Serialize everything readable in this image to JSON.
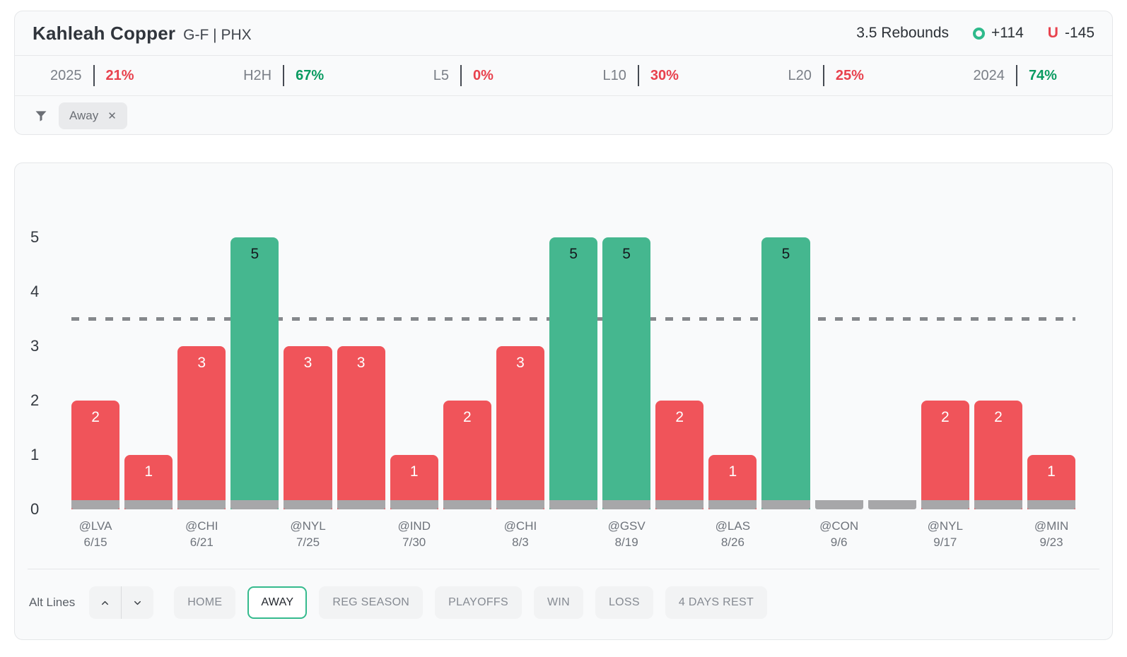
{
  "player": {
    "name": "Kahleah Copper",
    "meta": "G-F | PHX"
  },
  "prop": {
    "line_label": "3.5 Rebounds",
    "over_label": "O",
    "over_odds": "+114",
    "under_label": "U",
    "under_odds": "-145",
    "over_color": "#2eba8b",
    "under_color": "#e8434e"
  },
  "splits": [
    {
      "label": "2025",
      "value": "21%",
      "trend": "under"
    },
    {
      "label": "H2H",
      "value": "67%",
      "trend": "over"
    },
    {
      "label": "L5",
      "value": "0%",
      "trend": "under"
    },
    {
      "label": "L10",
      "value": "30%",
      "trend": "under"
    },
    {
      "label": "L20",
      "value": "25%",
      "trend": "under"
    },
    {
      "label": "2024",
      "value": "74%",
      "trend": "over"
    }
  ],
  "filters": {
    "chips": [
      {
        "label": "Away"
      }
    ]
  },
  "icons": {
    "chip_close": "✕"
  },
  "chart_data": {
    "type": "bar",
    "reference_line": 3.5,
    "y_ticks": [
      0,
      1,
      2,
      3,
      4,
      5
    ],
    "ylim": [
      0,
      5.85
    ],
    "grid": false,
    "categories": [
      "@LVA 6/15",
      "",
      "@CHI 6/21",
      "",
      "@NYL 7/25",
      "",
      "@IND 7/30",
      "",
      "@CHI 8/3",
      "",
      "@GSV 8/19",
      "",
      "@LAS 8/26",
      "",
      "@CON 9/6",
      "",
      "@NYL 9/17",
      "",
      "@MIN 9/23"
    ],
    "values": [
      2,
      1,
      3,
      5,
      3,
      3,
      1,
      2,
      3,
      5,
      5,
      2,
      1,
      5,
      0,
      0,
      2,
      2,
      1
    ],
    "games": [
      {
        "team": "@LVA",
        "date": "6/15",
        "value": 2
      },
      {
        "team": "",
        "date": "",
        "value": 1
      },
      {
        "team": "@CHI",
        "date": "6/21",
        "value": 3
      },
      {
        "team": "",
        "date": "",
        "value": 5
      },
      {
        "team": "@NYL",
        "date": "7/25",
        "value": 3
      },
      {
        "team": "",
        "date": "",
        "value": 3
      },
      {
        "team": "@IND",
        "date": "7/30",
        "value": 1
      },
      {
        "team": "",
        "date": "",
        "value": 2
      },
      {
        "team": "@CHI",
        "date": "8/3",
        "value": 3
      },
      {
        "team": "",
        "date": "",
        "value": 5
      },
      {
        "team": "@GSV",
        "date": "8/19",
        "value": 5
      },
      {
        "team": "",
        "date": "",
        "value": 2
      },
      {
        "team": "@LAS",
        "date": "8/26",
        "value": 1
      },
      {
        "team": "",
        "date": "",
        "value": 5
      },
      {
        "team": "@CON",
        "date": "9/6",
        "value": 0
      },
      {
        "team": "",
        "date": "",
        "value": 0
      },
      {
        "team": "@NYL",
        "date": "9/17",
        "value": 2
      },
      {
        "team": "",
        "date": "",
        "value": 2
      },
      {
        "team": "@MIN",
        "date": "9/23",
        "value": 1
      }
    ],
    "colors": {
      "over": "#45b78f",
      "under": "#f0545a",
      "zero_base": "#a7a7a9",
      "ref_line": "#85888c"
    },
    "legend": null,
    "title": ""
  },
  "toolbar": {
    "alt_lines_label": "Alt Lines",
    "buttons": [
      {
        "label": "HOME",
        "selected": false
      },
      {
        "label": "AWAY",
        "selected": true
      },
      {
        "label": "REG SEASON",
        "selected": false
      },
      {
        "label": "PLAYOFFS",
        "selected": false
      },
      {
        "label": "WIN",
        "selected": false
      },
      {
        "label": "LOSS",
        "selected": false
      },
      {
        "label": "4 DAYS REST",
        "selected": false
      }
    ]
  }
}
